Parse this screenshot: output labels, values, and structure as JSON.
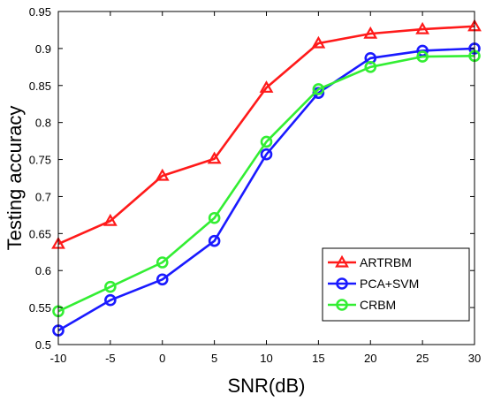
{
  "chart_data": {
    "type": "line",
    "title": "",
    "xlabel": "SNR(dB)",
    "ylabel": "Testing accuracy",
    "x": [
      -10,
      -5,
      0,
      5,
      10,
      15,
      20,
      25,
      30
    ],
    "xlim": [
      -10,
      30
    ],
    "ylim": [
      0.5,
      0.95
    ],
    "xticks": [
      "-10",
      "-5",
      "0",
      "5",
      "10",
      "15",
      "20",
      "25",
      "30"
    ],
    "yticks": [
      "0.5",
      "0.55",
      "0.6",
      "0.65",
      "0.7",
      "0.75",
      "0.8",
      "0.85",
      "0.9",
      "0.95"
    ],
    "grid": false,
    "legend_position": "bottom-right",
    "series": [
      {
        "name": "ARTRBM",
        "color": "#ff1a1a",
        "marker": "triangle",
        "values": [
          0.636,
          0.667,
          0.728,
          0.751,
          0.847,
          0.907,
          0.92,
          0.926,
          0.93
        ]
      },
      {
        "name": "PCA+SVM",
        "color": "#1a1aff",
        "marker": "circle",
        "values": [
          0.519,
          0.56,
          0.588,
          0.64,
          0.757,
          0.84,
          0.887,
          0.897,
          0.9
        ]
      },
      {
        "name": "CRBM",
        "color": "#33ee33",
        "marker": "circle",
        "values": [
          0.545,
          0.578,
          0.611,
          0.671,
          0.774,
          0.845,
          0.875,
          0.889,
          0.89
        ]
      }
    ]
  }
}
